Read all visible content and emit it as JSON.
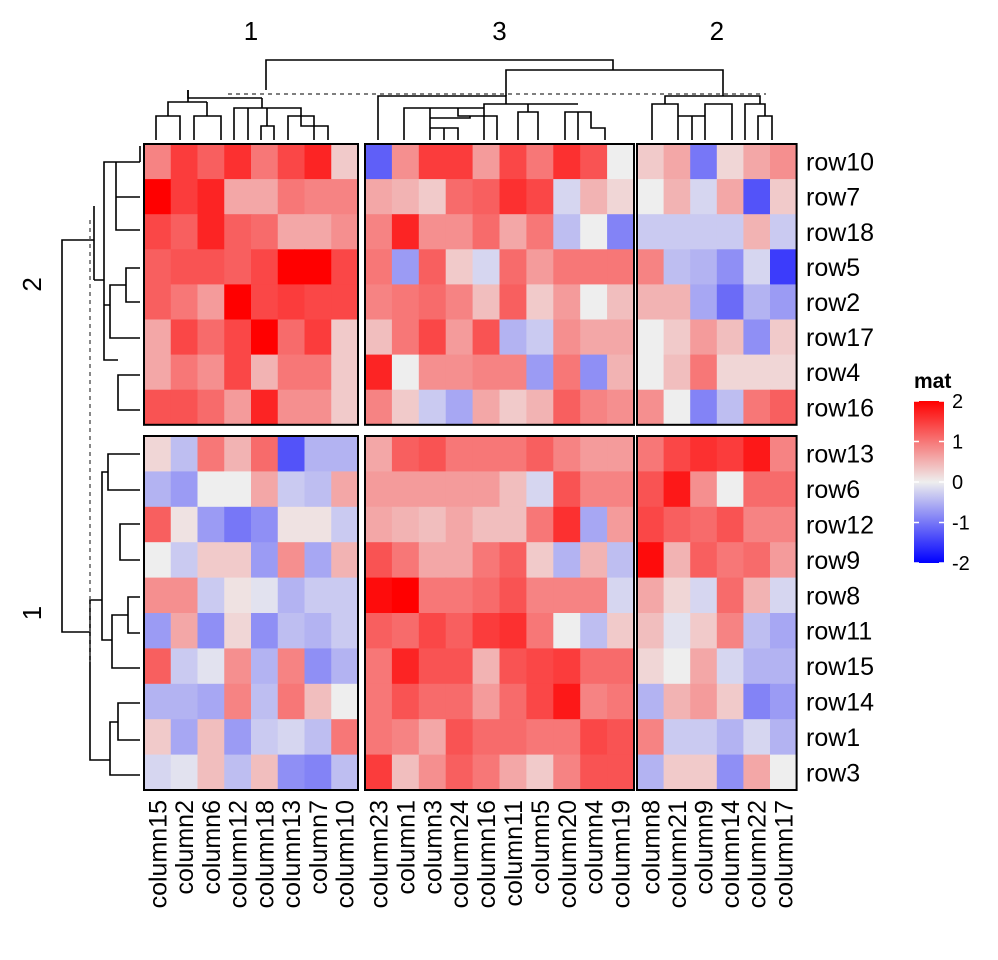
{
  "chart_data": {
    "type": "heatmap",
    "legend": {
      "title": "mat",
      "ticks": [
        2,
        1,
        0,
        -1,
        -2
      ],
      "range": [
        -2,
        2
      ],
      "placement": "right"
    },
    "colors": {
      "low": "#0000ff",
      "mid": "#eeeeee",
      "high": "#ff0000"
    },
    "column_slices": [
      {
        "label": "1",
        "columns": [
          "column15",
          "column2",
          "column6",
          "column12",
          "column18",
          "column13",
          "column7",
          "column10"
        ]
      },
      {
        "label": "3",
        "columns": [
          "column23",
          "column1",
          "column3",
          "column24",
          "column16",
          "column11",
          "column5",
          "column20",
          "column4",
          "column19"
        ]
      },
      {
        "label": "2",
        "columns": [
          "column8",
          "column21",
          "column9",
          "column14",
          "column22",
          "column17"
        ]
      }
    ],
    "row_slices": [
      {
        "label": "2",
        "rows": [
          "row10",
          "row7",
          "row18",
          "row5",
          "row2",
          "row17",
          "row4",
          "row16"
        ]
      },
      {
        "label": "1",
        "rows": [
          "row13",
          "row6",
          "row12",
          "row9",
          "row8",
          "row11",
          "row15",
          "row14",
          "row1",
          "row3"
        ]
      }
    ],
    "values": [
      [
        0.9,
        1.5,
        1.2,
        1.6,
        1.0,
        1.4,
        1.7,
        0.3,
        -1.2,
        0.8,
        1.5,
        1.5,
        0.7,
        1.4,
        1.0,
        1.6,
        1.3,
        0.0,
        0.3,
        0.6,
        -1.0,
        0.2,
        0.6,
        0.8
      ],
      [
        2.0,
        1.5,
        1.7,
        0.6,
        0.6,
        1.0,
        0.9,
        0.9,
        0.6,
        0.5,
        0.3,
        1.1,
        1.2,
        1.6,
        1.4,
        -0.2,
        0.5,
        0.2,
        0.0,
        0.5,
        -0.2,
        0.6,
        -1.3,
        0.3
      ],
      [
        1.4,
        1.2,
        1.7,
        1.2,
        1.1,
        0.6,
        0.6,
        0.8,
        0.9,
        1.7,
        0.8,
        0.8,
        1.1,
        0.6,
        1.0,
        -0.4,
        0.0,
        -0.9,
        -0.3,
        -0.3,
        -0.3,
        -0.3,
        0.5,
        -0.3
      ],
      [
        1.2,
        1.3,
        1.3,
        1.2,
        1.4,
        2.0,
        2.0,
        1.4,
        1.0,
        -0.7,
        1.2,
        0.3,
        -0.2,
        1.1,
        0.7,
        1.0,
        1.0,
        1.0,
        0.9,
        -0.4,
        -0.5,
        -0.8,
        -0.2,
        -1.5
      ],
      [
        1.2,
        1.0,
        0.7,
        2.0,
        1.4,
        1.5,
        1.4,
        1.4,
        0.9,
        1.0,
        1.1,
        0.9,
        0.4,
        1.2,
        0.3,
        0.7,
        0.0,
        0.4,
        0.5,
        0.5,
        -0.6,
        -1.1,
        -0.5,
        -0.7
      ],
      [
        0.6,
        1.4,
        1.1,
        1.4,
        2.0,
        1.1,
        1.5,
        0.3,
        0.4,
        1.0,
        1.4,
        0.7,
        1.3,
        -0.5,
        -0.3,
        0.8,
        0.6,
        0.6,
        0.0,
        0.3,
        0.7,
        0.4,
        -0.8,
        0.3
      ],
      [
        0.6,
        1.0,
        0.8,
        1.4,
        0.5,
        1.0,
        1.0,
        0.3,
        1.7,
        0.0,
        0.8,
        0.8,
        0.9,
        0.9,
        -0.7,
        1.0,
        -0.8,
        0.5,
        0.0,
        0.4,
        1.0,
        0.2,
        0.2,
        0.2
      ],
      [
        1.3,
        1.3,
        1.1,
        0.7,
        1.7,
        0.8,
        0.8,
        0.3,
        0.9,
        0.3,
        -0.3,
        -0.6,
        0.6,
        0.3,
        0.5,
        1.2,
        0.9,
        0.8,
        0.8,
        0.0,
        -0.9,
        -0.4,
        1.0,
        1.2
      ],
      [
        0.2,
        -0.4,
        1.0,
        0.5,
        1.1,
        -1.3,
        -0.5,
        -0.5,
        0.6,
        1.2,
        1.3,
        1.0,
        1.0,
        1.0,
        1.2,
        0.9,
        0.7,
        0.7,
        1.0,
        1.4,
        1.6,
        1.5,
        1.8,
        0.9
      ],
      [
        -0.5,
        -0.7,
        0.0,
        0.0,
        0.6,
        -0.3,
        -0.4,
        0.6,
        0.7,
        0.7,
        0.7,
        0.7,
        0.7,
        0.4,
        -0.2,
        1.3,
        0.9,
        0.9,
        1.3,
        1.8,
        0.8,
        0.0,
        1.1,
        1.1
      ],
      [
        1.2,
        0.1,
        -0.7,
        -1.0,
        -0.8,
        0.1,
        0.1,
        -0.3,
        0.6,
        0.5,
        0.4,
        0.6,
        0.4,
        0.4,
        1.0,
        1.6,
        -0.6,
        0.7,
        1.4,
        1.2,
        1.1,
        1.3,
        0.9,
        0.9
      ],
      [
        0.0,
        -0.3,
        0.3,
        0.3,
        -0.7,
        0.8,
        -0.6,
        0.5,
        1.3,
        1.0,
        0.6,
        0.6,
        1.0,
        1.2,
        0.3,
        -0.5,
        0.5,
        -0.4,
        1.9,
        0.5,
        1.2,
        1.0,
        1.1,
        0.7
      ],
      [
        0.8,
        0.8,
        -0.3,
        0.1,
        -0.1,
        -0.5,
        -0.3,
        -0.3,
        1.9,
        2.0,
        1.0,
        1.0,
        1.1,
        1.3,
        0.9,
        0.9,
        0.9,
        -0.2,
        0.6,
        0.2,
        -0.2,
        1.1,
        0.5,
        -0.2
      ],
      [
        -0.7,
        0.6,
        -0.8,
        0.2,
        -0.8,
        -0.4,
        -0.5,
        -0.3,
        1.2,
        1.1,
        1.4,
        1.2,
        1.5,
        1.6,
        1.0,
        0.0,
        -0.4,
        0.3,
        0.4,
        -0.1,
        0.3,
        0.9,
        -0.4,
        -0.6
      ],
      [
        1.2,
        -0.3,
        -0.1,
        0.8,
        -0.5,
        0.9,
        -0.8,
        -0.5,
        1.0,
        1.7,
        1.3,
        1.3,
        0.5,
        1.3,
        1.4,
        1.5,
        1.1,
        1.1,
        0.2,
        0.0,
        0.6,
        -0.2,
        -0.5,
        -0.5
      ],
      [
        -0.5,
        -0.5,
        -0.6,
        0.9,
        -0.4,
        1.0,
        0.4,
        0.0,
        1.0,
        1.3,
        1.1,
        1.1,
        0.7,
        1.1,
        1.4,
        1.8,
        0.9,
        1.0,
        -0.5,
        0.5,
        0.7,
        0.3,
        -0.9,
        -0.7
      ],
      [
        0.3,
        -0.6,
        0.4,
        -0.7,
        -0.3,
        -0.2,
        -0.4,
        1.0,
        1.0,
        0.9,
        0.6,
        1.3,
        1.1,
        1.1,
        1.0,
        1.0,
        1.4,
        1.3,
        0.9,
        -0.3,
        -0.3,
        -0.5,
        -0.2,
        -0.5
      ],
      [
        -0.2,
        -0.1,
        0.4,
        -0.4,
        0.4,
        -0.8,
        -0.9,
        -0.4,
        1.5,
        0.4,
        0.8,
        1.2,
        1.0,
        0.6,
        0.3,
        0.9,
        1.3,
        1.3,
        -0.5,
        0.3,
        0.3,
        -0.8,
        0.6,
        0.0
      ]
    ]
  }
}
